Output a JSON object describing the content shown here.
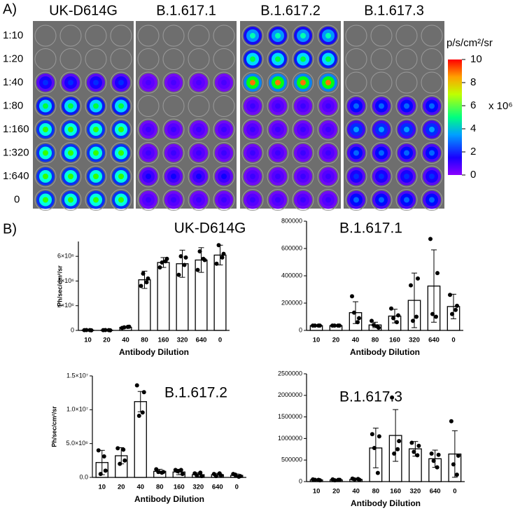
{
  "figure": {
    "panel_a_label": "A)",
    "panel_b_label": "B)",
    "panels": [
      "UK-D614G",
      "B.1.617.1",
      "B.1.617.2",
      "B.1.617.3"
    ],
    "rows": [
      "1:10",
      "1:20",
      "1:40",
      "1:80",
      "1:160",
      "1:320",
      "1:640",
      "0"
    ],
    "colorbar": {
      "label": "p/s/cm²/sr",
      "multiplier": "x 10⁶",
      "lim": [
        0,
        10
      ],
      "ticks": [
        0,
        2,
        4,
        6,
        8,
        10
      ]
    }
  },
  "chart_data": [
    {
      "type": "bar",
      "title": "UK-D614G",
      "xlabel": "Antibody Dilution",
      "ylabel": "Ph/sec/cm²/sr",
      "categories": [
        "10",
        "20",
        "40",
        "80",
        "160",
        "320",
        "640",
        "0"
      ],
      "values": [
        20000,
        20000,
        250000,
        4100000,
        5500000,
        5400000,
        5700000,
        6100000
      ],
      "errors": [
        10000,
        10000,
        50000,
        700000,
        400000,
        1100000,
        1000000,
        800000
      ],
      "points": [
        [
          20000,
          10000,
          30000,
          20000
        ],
        [
          20000,
          10000,
          30000,
          20000
        ],
        [
          200000,
          300000,
          250000,
          280000
        ],
        [
          3600000,
          4200000,
          4600000,
          3900000
        ],
        [
          5100000,
          5800000,
          5500000,
          5600000
        ],
        [
          4500000,
          5900000,
          6000000,
          5300000
        ],
        [
          4900000,
          5700000,
          6400000,
          5800000
        ],
        [
          5400000,
          6200000,
          6900000,
          5900000
        ]
      ],
      "ylim": [
        0,
        7200000
      ],
      "yticks": [
        0,
        {
          "value": 2000000,
          "label": "2×10⁶"
        },
        {
          "value": 4000000,
          "label": "4×10⁶"
        },
        {
          "value": 6000000,
          "label": "6×10⁶"
        }
      ]
    },
    {
      "type": "bar",
      "title": "B.1.617.1",
      "xlabel": "Antibody Dilution",
      "categories": [
        "10",
        "20",
        "40",
        "80",
        "160",
        "320",
        "640",
        "0"
      ],
      "values": [
        35000,
        35000,
        130000,
        40000,
        105000,
        220000,
        325000,
        175000
      ],
      "errors": [
        5000,
        5000,
        80000,
        20000,
        50000,
        200000,
        265000,
        90000
      ],
      "points": [
        [
          35000,
          35000,
          35000,
          35000
        ],
        [
          35000,
          35000,
          35000,
          35000
        ],
        [
          250000,
          90000,
          130000,
          60000
        ],
        [
          70000,
          20000,
          40000,
          30000
        ],
        [
          160000,
          110000,
          90000,
          60000
        ],
        [
          330000,
          380000,
          70000,
          100000
        ],
        [
          670000,
          420000,
          120000,
          100000
        ],
        [
          260000,
          180000,
          120000,
          150000
        ]
      ],
      "ylim": [
        0,
        800000
      ],
      "yticks": [
        0,
        200000,
        400000,
        600000,
        800000
      ]
    },
    {
      "type": "bar",
      "title": "B.1.617.2",
      "xlabel": "Antibody Dilution",
      "ylabel": "Ph/sec/cm²/sr",
      "categories": [
        "10",
        "20",
        "40",
        "80",
        "160",
        "320",
        "640",
        "0"
      ],
      "values": [
        2200000,
        3200000,
        11200000,
        900000,
        800000,
        400000,
        400000,
        300000
      ],
      "errors": [
        1800000,
        1200000,
        1500000,
        300000,
        400000,
        300000,
        200000,
        200000
      ],
      "points": [
        [
          4000000,
          1000000,
          500000,
          3100000
        ],
        [
          4300000,
          2500000,
          2000000,
          4100000
        ],
        [
          13600000,
          12600000,
          9100000,
          9600000
        ],
        [
          1200000,
          800000,
          800000,
          700000
        ],
        [
          1100000,
          500000,
          900000,
          1100000
        ],
        [
          600000,
          200000,
          300000,
          700000
        ],
        [
          500000,
          300000,
          200000,
          600000
        ],
        [
          500000,
          200000,
          400000,
          100000
        ]
      ],
      "ylim": [
        0,
        15000000
      ],
      "yticks": [
        {
          "value": 0,
          "label": "0.0"
        },
        {
          "value": 5000000,
          "label": "5.0×10⁶"
        },
        {
          "value": 10000000,
          "label": "1.0×10⁷"
        },
        {
          "value": 15000000,
          "label": "1.5×10⁷"
        }
      ]
    },
    {
      "type": "bar",
      "title": "B.1.617.3",
      "xlabel": "Antibody Dilution",
      "categories": [
        "10",
        "20",
        "40",
        "80",
        "160",
        "320",
        "640",
        "0"
      ],
      "values": [
        40000,
        40000,
        50000,
        780000,
        1070000,
        760000,
        530000,
        640000
      ],
      "errors": [
        10000,
        10000,
        15000,
        460000,
        600000,
        170000,
        200000,
        540000
      ],
      "points": [
        [
          50000,
          30000,
          40000,
          40000
        ],
        [
          50000,
          40000,
          30000,
          40000
        ],
        [
          70000,
          40000,
          50000,
          60000
        ],
        [
          1100000,
          1050000,
          780000,
          200000
        ],
        [
          1950000,
          940000,
          650000,
          750000
        ],
        [
          900000,
          830000,
          690000,
          610000
        ],
        [
          650000,
          620000,
          480000,
          330000
        ],
        [
          1400000,
          600000,
          400000,
          160000
        ]
      ],
      "ylim": [
        0,
        2500000
      ],
      "yticks": [
        0,
        500000,
        1000000,
        1500000,
        2000000,
        2500000
      ]
    }
  ]
}
